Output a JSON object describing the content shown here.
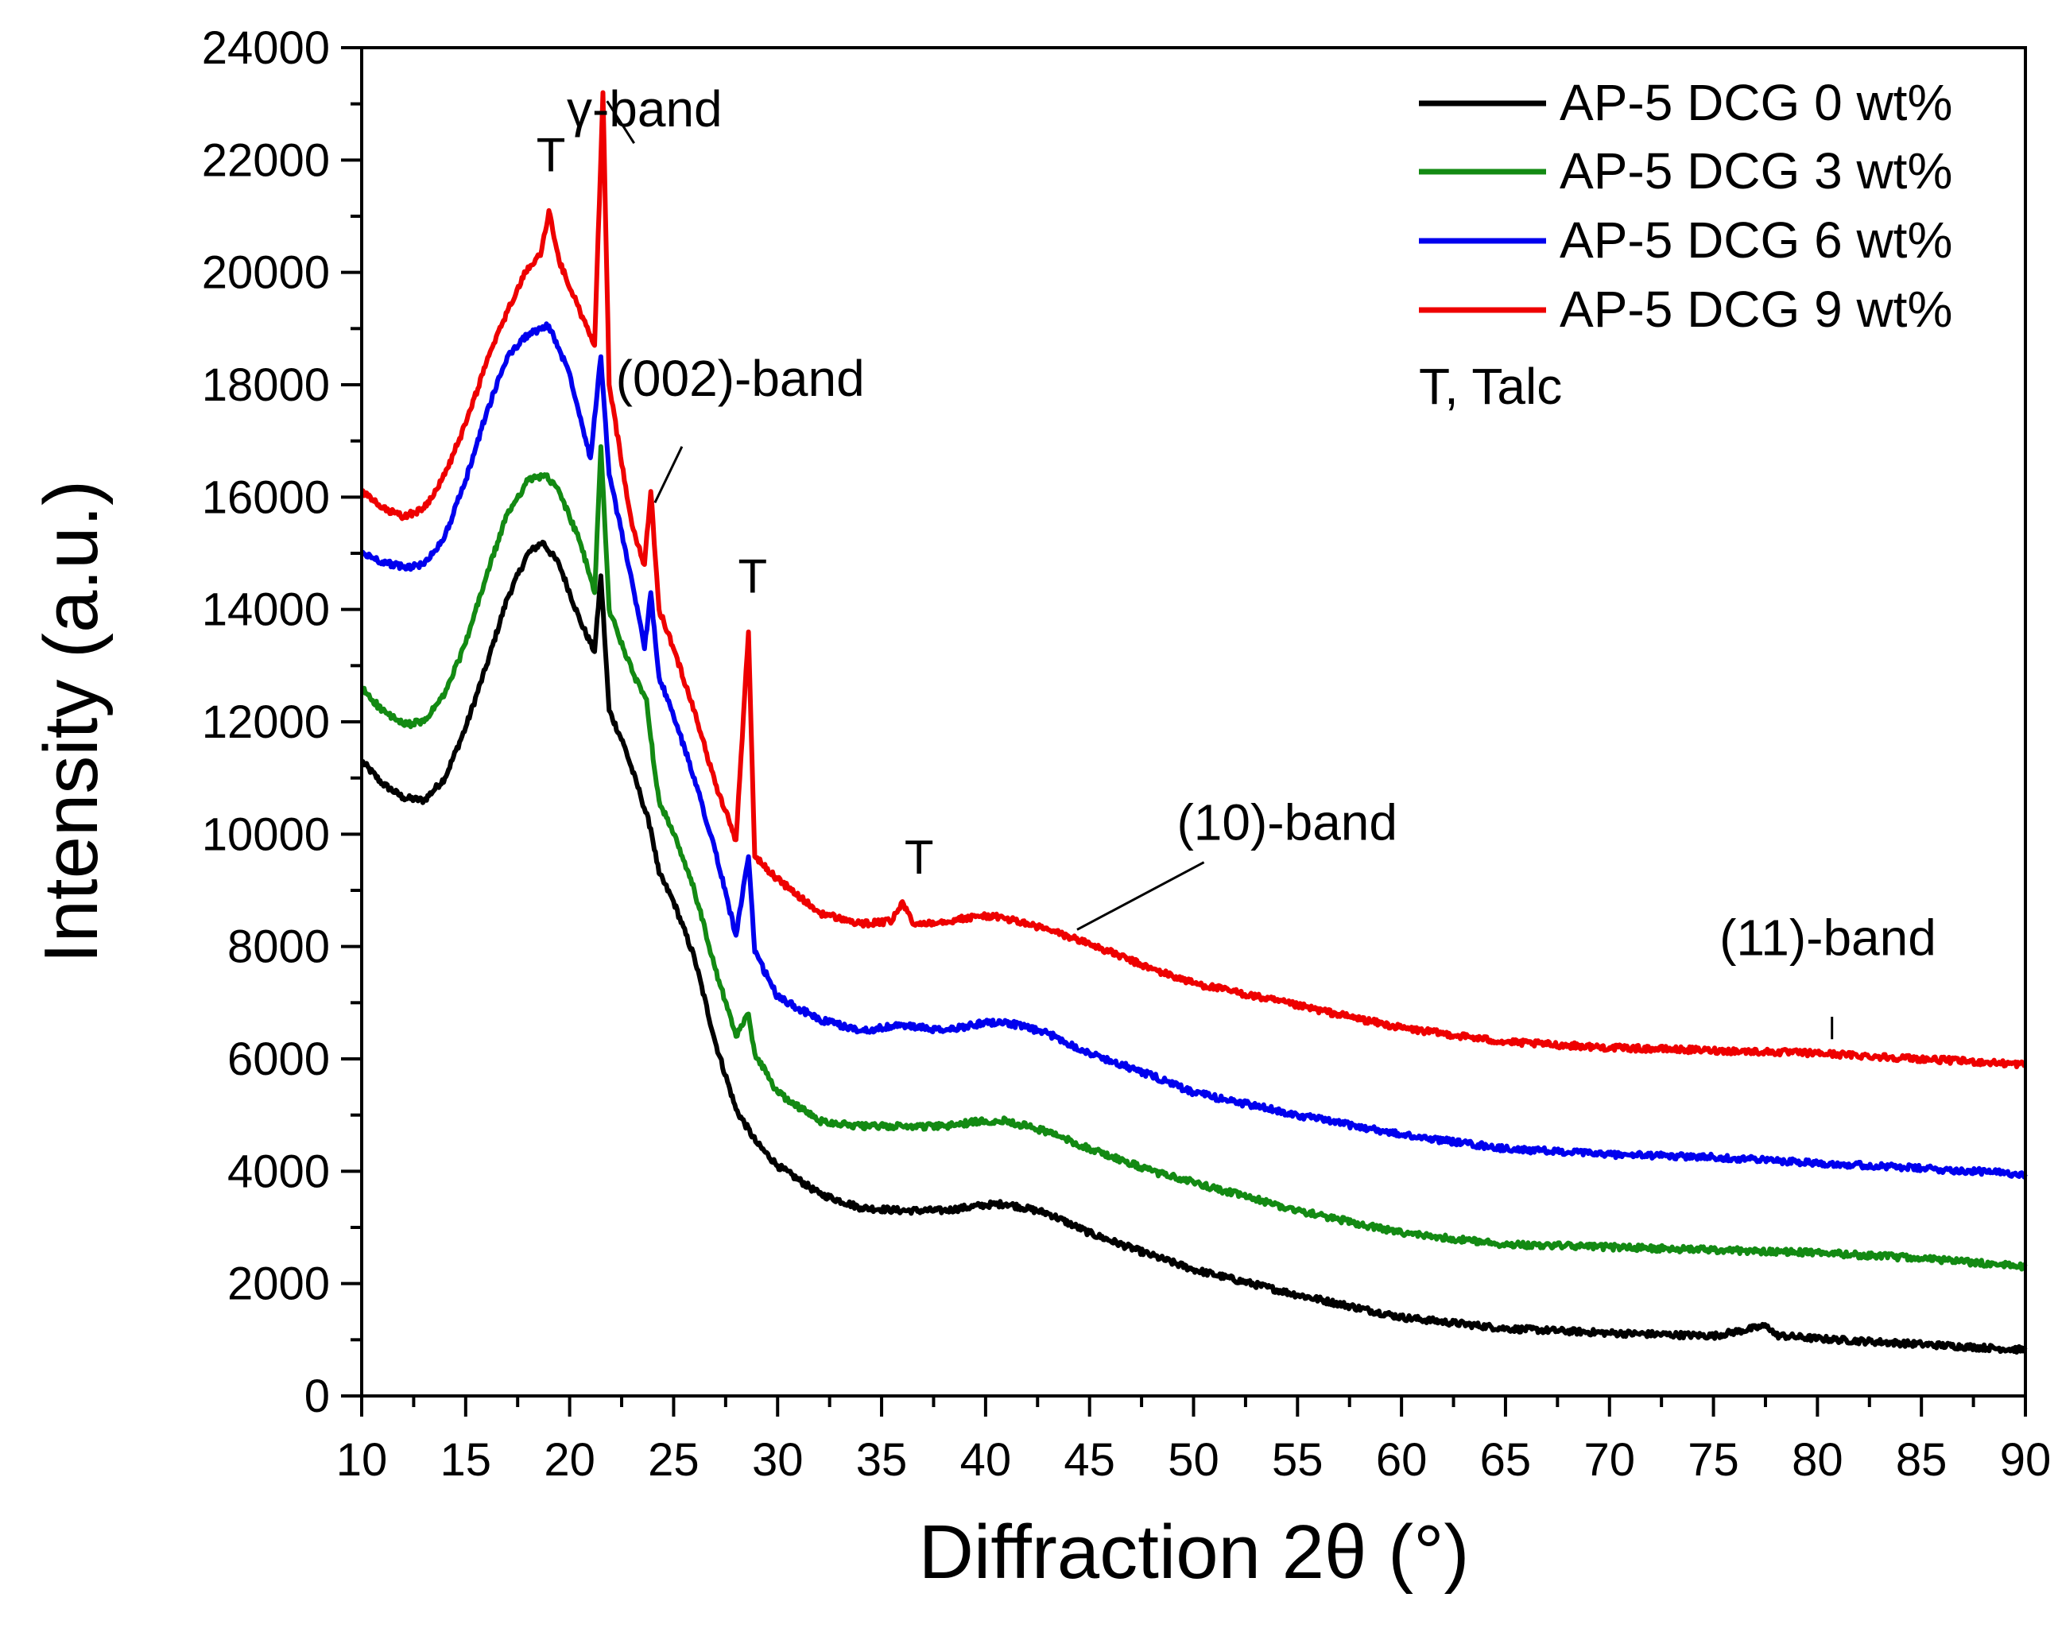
{
  "chart_data": {
    "type": "line",
    "title": "",
    "xlabel": "Diffraction 2θ (°)",
    "ylabel": "Intensity (a.u.)",
    "xlim": [
      10,
      90
    ],
    "ylim": [
      0,
      24000
    ],
    "x_ticks": [
      10,
      15,
      20,
      25,
      30,
      35,
      40,
      45,
      50,
      55,
      60,
      65,
      70,
      75,
      80,
      85,
      90
    ],
    "y_ticks": [
      0,
      2000,
      4000,
      6000,
      8000,
      10000,
      12000,
      14000,
      16000,
      18000,
      20000,
      22000,
      24000
    ],
    "grid": false,
    "legend_position": "top-right",
    "series": [
      {
        "name": "AP-5 DCG 0 wt%",
        "color": "#000000",
        "points": [
          [
            10,
            11300
          ],
          [
            11,
            10900
          ],
          [
            12,
            10650
          ],
          [
            13,
            10600
          ],
          [
            14,
            11000
          ],
          [
            15,
            11900
          ],
          [
            16,
            13000
          ],
          [
            17,
            14200
          ],
          [
            18,
            15000
          ],
          [
            18.7,
            15200
          ],
          [
            19.5,
            14800
          ],
          [
            20.5,
            13800
          ],
          [
            21.2,
            13250
          ],
          [
            21.5,
            14600
          ],
          [
            21.9,
            12200
          ],
          [
            22.6,
            11600
          ],
          [
            23.4,
            10700
          ],
          [
            23.9,
            10100
          ],
          [
            24.3,
            9300
          ],
          [
            25,
            8800
          ],
          [
            26,
            7800
          ],
          [
            27,
            6300
          ],
          [
            28,
            5100
          ],
          [
            29,
            4500
          ],
          [
            30,
            4100
          ],
          [
            32,
            3600
          ],
          [
            34,
            3350
          ],
          [
            36,
            3300
          ],
          [
            38,
            3300
          ],
          [
            40,
            3400
          ],
          [
            41,
            3420
          ],
          [
            43,
            3250
          ],
          [
            45,
            2900
          ],
          [
            48,
            2500
          ],
          [
            50,
            2250
          ],
          [
            55,
            1800
          ],
          [
            60,
            1400
          ],
          [
            65,
            1200
          ],
          [
            70,
            1120
          ],
          [
            75,
            1070
          ],
          [
            77.6,
            1250
          ],
          [
            78,
            1080
          ],
          [
            80,
            1020
          ],
          [
            85,
            920
          ],
          [
            90,
            820
          ]
        ]
      },
      {
        "name": "AP-5 DCG 3 wt%",
        "color": "#138a13",
        "points": [
          [
            10,
            12600
          ],
          [
            11,
            12200
          ],
          [
            12,
            11950
          ],
          [
            13,
            12000
          ],
          [
            14,
            12500
          ],
          [
            15,
            13400
          ],
          [
            16,
            14600
          ],
          [
            17,
            15700
          ],
          [
            18,
            16300
          ],
          [
            18.8,
            16400
          ],
          [
            19.5,
            16100
          ],
          [
            20.5,
            15200
          ],
          [
            21.2,
            14300
          ],
          [
            21.5,
            16900
          ],
          [
            21.9,
            14000
          ],
          [
            23,
            12900
          ],
          [
            23.7,
            12400
          ],
          [
            23.9,
            11700
          ],
          [
            24.3,
            10600
          ],
          [
            25,
            10000
          ],
          [
            26,
            9000
          ],
          [
            27,
            7600
          ],
          [
            28,
            6400
          ],
          [
            28.6,
            6800
          ],
          [
            28.9,
            6100
          ],
          [
            30,
            5400
          ],
          [
            32,
            4900
          ],
          [
            34,
            4800
          ],
          [
            36,
            4800
          ],
          [
            38,
            4800
          ],
          [
            40,
            4900
          ],
          [
            41,
            4900
          ],
          [
            43,
            4700
          ],
          [
            45,
            4400
          ],
          [
            48,
            4000
          ],
          [
            50,
            3800
          ],
          [
            55,
            3300
          ],
          [
            60,
            2900
          ],
          [
            65,
            2700
          ],
          [
            70,
            2650
          ],
          [
            75,
            2600
          ],
          [
            80,
            2550
          ],
          [
            85,
            2450
          ],
          [
            90,
            2300
          ]
        ]
      },
      {
        "name": "AP-5 DCG 6 wt%",
        "color": "#0000ee",
        "points": [
          [
            10,
            15000
          ],
          [
            11,
            14850
          ],
          [
            12,
            14750
          ],
          [
            13,
            14800
          ],
          [
            14,
            15300
          ],
          [
            15,
            16300
          ],
          [
            16,
            17500
          ],
          [
            17,
            18500
          ],
          [
            18,
            18900
          ],
          [
            19,
            19050
          ],
          [
            20,
            18200
          ],
          [
            21,
            16700
          ],
          [
            21.5,
            18500
          ],
          [
            21.9,
            16400
          ],
          [
            23,
            14500
          ],
          [
            23.6,
            13300
          ],
          [
            23.9,
            14300
          ],
          [
            24.3,
            12800
          ],
          [
            25,
            12100
          ],
          [
            26,
            11000
          ],
          [
            27,
            9700
          ],
          [
            28,
            8200
          ],
          [
            28.6,
            9600
          ],
          [
            28.9,
            7900
          ],
          [
            30,
            7100
          ],
          [
            32,
            6700
          ],
          [
            34,
            6500
          ],
          [
            36,
            6600
          ],
          [
            38,
            6500
          ],
          [
            40,
            6650
          ],
          [
            41,
            6650
          ],
          [
            43,
            6450
          ],
          [
            45,
            6100
          ],
          [
            48,
            5700
          ],
          [
            50,
            5400
          ],
          [
            55,
            5000
          ],
          [
            60,
            4650
          ],
          [
            65,
            4400
          ],
          [
            70,
            4300
          ],
          [
            75,
            4250
          ],
          [
            80,
            4150
          ],
          [
            85,
            4050
          ],
          [
            90,
            3950
          ]
        ]
      },
      {
        "name": "AP-5 DCG 9 wt%",
        "color": "#ee0000",
        "points": [
          [
            10,
            16100
          ],
          [
            11,
            15800
          ],
          [
            12,
            15650
          ],
          [
            13,
            15800
          ],
          [
            14,
            16400
          ],
          [
            15,
            17300
          ],
          [
            16,
            18400
          ],
          [
            17,
            19300
          ],
          [
            18,
            20100
          ],
          [
            18.6,
            20300
          ],
          [
            19,
            21100
          ],
          [
            19.5,
            20200
          ],
          [
            20.5,
            19300
          ],
          [
            21.2,
            18700
          ],
          [
            21.6,
            23200
          ],
          [
            21.9,
            18000
          ],
          [
            23,
            15500
          ],
          [
            23.6,
            14800
          ],
          [
            23.9,
            16100
          ],
          [
            24.3,
            14000
          ],
          [
            25,
            13300
          ],
          [
            26,
            12200
          ],
          [
            27,
            10900
          ],
          [
            28,
            9900
          ],
          [
            28.6,
            13600
          ],
          [
            28.9,
            9600
          ],
          [
            30,
            9200
          ],
          [
            32,
            8600
          ],
          [
            34,
            8400
          ],
          [
            35.5,
            8450
          ],
          [
            36,
            8800
          ],
          [
            36.5,
            8400
          ],
          [
            38,
            8450
          ],
          [
            40,
            8550
          ],
          [
            41,
            8500
          ],
          [
            43,
            8300
          ],
          [
            45,
            8050
          ],
          [
            48,
            7600
          ],
          [
            50,
            7350
          ],
          [
            55,
            6950
          ],
          [
            60,
            6550
          ],
          [
            65,
            6300
          ],
          [
            70,
            6200
          ],
          [
            75,
            6150
          ],
          [
            80,
            6100
          ],
          [
            85,
            6000
          ],
          [
            90,
            5900
          ]
        ]
      }
    ],
    "annotations": [
      {
        "text": "T",
        "x": 19.1,
        "y": 21800
      },
      {
        "text": "γ-band",
        "x": 23.6,
        "y": 22600
      },
      {
        "text": "(002)-band",
        "x": 28.2,
        "y": 17800
      },
      {
        "text": "T",
        "x": 28.8,
        "y": 14300
      },
      {
        "text": "T",
        "x": 36.8,
        "y": 9300
      },
      {
        "text": "(10)-band",
        "x": 54.5,
        "y": 9900
      },
      {
        "text": "(11)-band",
        "x": 80.5,
        "y": 7850
      }
    ],
    "legend_note": "T, Talc"
  }
}
